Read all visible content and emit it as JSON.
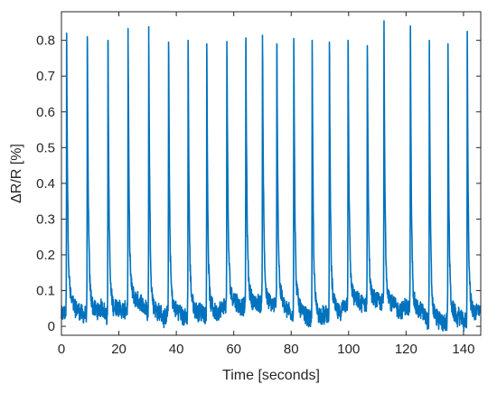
{
  "chart_data": {
    "type": "line",
    "xlabel": "Time [seconds]",
    "ylabel": "ΔR/R [%]",
    "xlim": [
      0,
      146
    ],
    "ylim": [
      -0.025,
      0.88
    ],
    "x_ticks": [
      0,
      20,
      40,
      60,
      80,
      100,
      120,
      140
    ],
    "y_ticks": [
      0,
      0.1,
      0.2,
      0.3,
      0.4,
      0.5,
      0.6,
      0.7,
      0.8
    ],
    "grid": false,
    "line_color": "#0072BD",
    "baseline_range": [
      -0.02,
      0.12
    ],
    "peaks": [
      {
        "x": 1.8,
        "y": 0.82
      },
      {
        "x": 9.0,
        "y": 0.81
      },
      {
        "x": 16.2,
        "y": 0.8
      },
      {
        "x": 23.2,
        "y": 0.795
      },
      {
        "x": 30.4,
        "y": 0.805
      },
      {
        "x": 37.3,
        "y": 0.795
      },
      {
        "x": 44.1,
        "y": 0.8
      },
      {
        "x": 50.6,
        "y": 0.79
      },
      {
        "x": 57.6,
        "y": 0.785
      },
      {
        "x": 64.2,
        "y": 0.795
      },
      {
        "x": 70.0,
        "y": 0.795
      },
      {
        "x": 75.0,
        "y": 0.79
      },
      {
        "x": 80.9,
        "y": 0.805
      },
      {
        "x": 87.3,
        "y": 0.8
      },
      {
        "x": 93.3,
        "y": 0.795
      },
      {
        "x": 99.8,
        "y": 0.8
      },
      {
        "x": 106.5,
        "y": 0.785
      },
      {
        "x": 112.3,
        "y": 0.785
      },
      {
        "x": 121.5,
        "y": 0.795
      },
      {
        "x": 128.1,
        "y": 0.8
      },
      {
        "x": 134.6,
        "y": 0.79
      },
      {
        "x": 141.3,
        "y": 0.825
      }
    ]
  }
}
